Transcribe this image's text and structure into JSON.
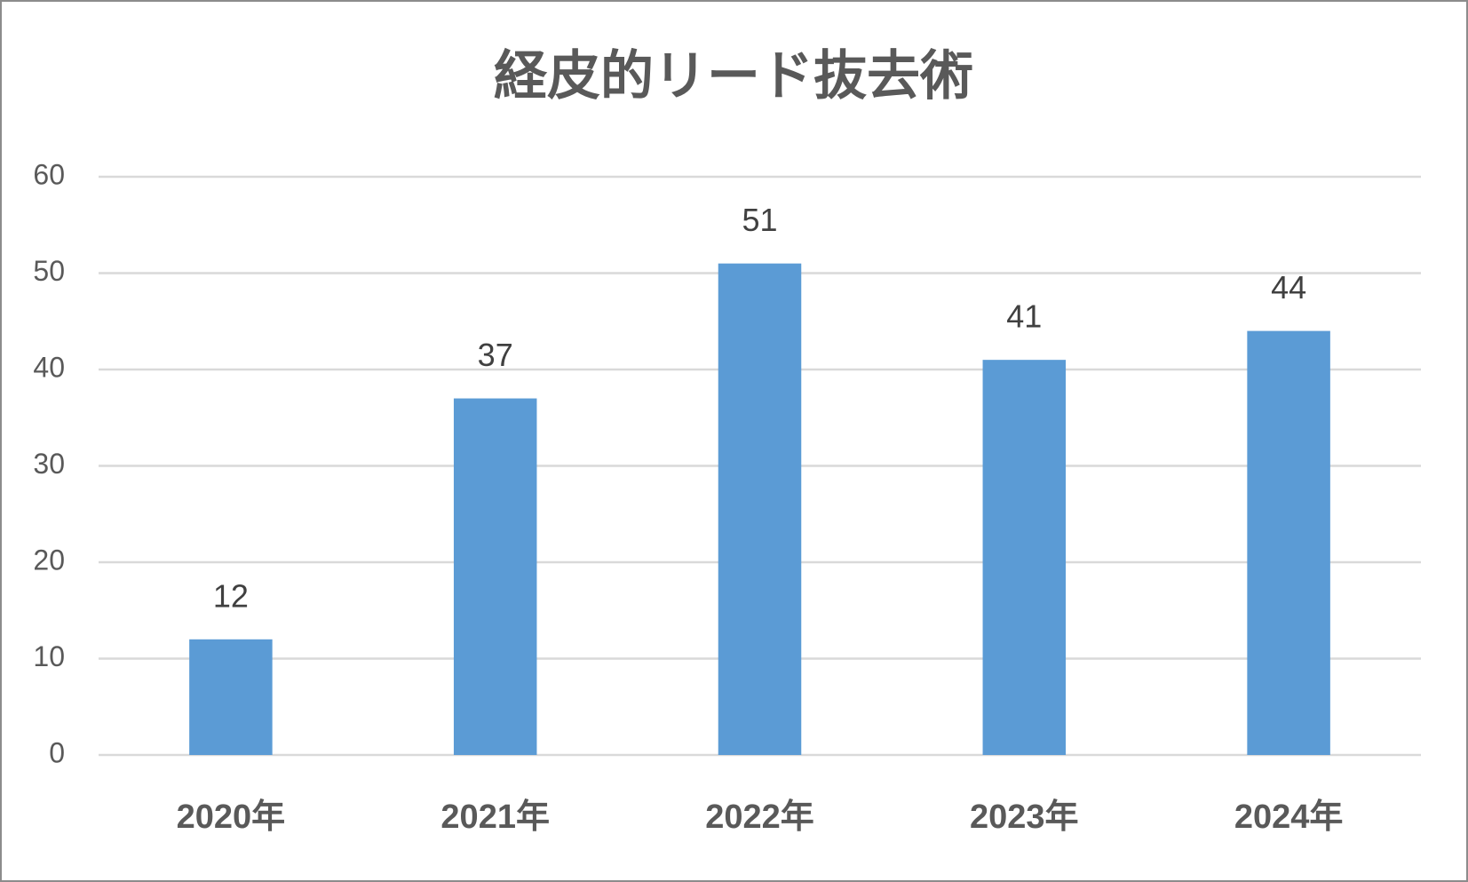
{
  "chart_data": {
    "type": "bar",
    "title": "経皮的リード抜去術",
    "categories": [
      "2020年",
      "2021年",
      "2022年",
      "2023年",
      "2024年"
    ],
    "values": [
      12,
      37,
      51,
      41,
      44
    ],
    "color": "#5b9bd5",
    "ylim": [
      0,
      60
    ],
    "yticks": [
      0,
      10,
      20,
      30,
      40,
      50,
      60
    ],
    "grid": true
  }
}
